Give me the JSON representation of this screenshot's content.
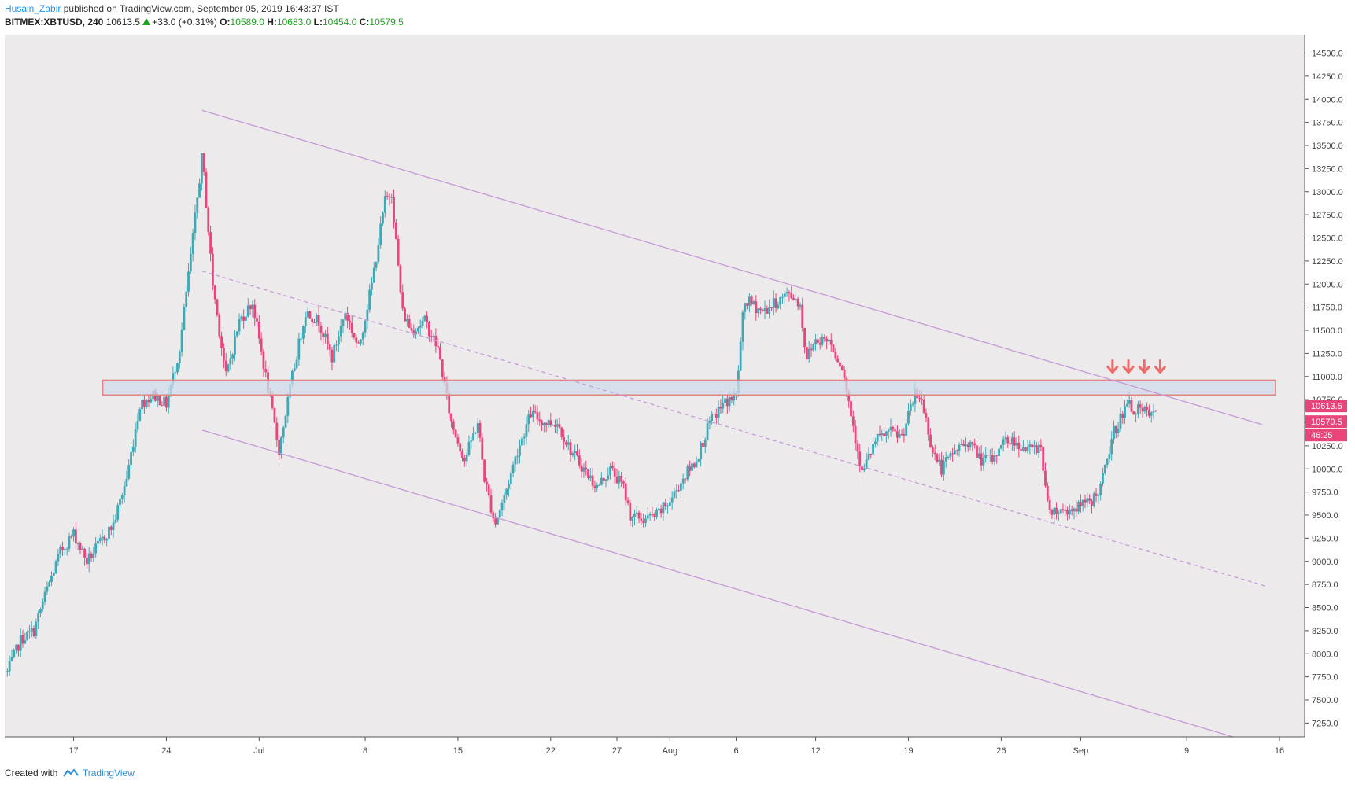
{
  "header": {
    "author": "Husain_Zabir",
    "published_text": "published on TradingView.com, September 05, 2019 16:43:37 IST",
    "symbol": "BITMEX:XBTUSD, 240",
    "last": "10613.5",
    "change": "+33.0 (+0.31%)",
    "open_label": "O:",
    "open": "10589.0",
    "high_label": "H:",
    "high": "10683.0",
    "low_label": "L:",
    "low": "10454.0",
    "close_label": "C:",
    "close": "10579.5"
  },
  "footer": {
    "created_with": "Created with",
    "brand": "TradingView"
  },
  "colors": {
    "bull": "#3fa8b4",
    "bear": "#e8457a",
    "background": "#edeaec",
    "channel": "#c59ad6",
    "zone_fill": "#cfdcea",
    "zone_border": "#e08484",
    "arrow": "#ef6a6a",
    "badge": "#e8457a"
  },
  "chart_data": {
    "type": "candlestick",
    "symbol": "BITMEX:XBTUSD",
    "interval": "240",
    "ylim": [
      7100,
      14700
    ],
    "y_ticks": [
      7250,
      7500,
      7750,
      8000,
      8250,
      8500,
      8750,
      9000,
      9250,
      9500,
      9750,
      10000,
      10250,
      10500,
      10750,
      11000,
      11250,
      11500,
      11750,
      12000,
      12250,
      12500,
      12750,
      13000,
      13250,
      13500,
      13750,
      14000,
      14250,
      14500
    ],
    "x_ticks": [
      {
        "label": "17",
        "day": 17
      },
      {
        "label": "24",
        "day": 24
      },
      {
        "label": "Jul",
        "day": 31
      },
      {
        "label": "8",
        "day": 39
      },
      {
        "label": "15",
        "day": 46
      },
      {
        "label": "22",
        "day": 53
      },
      {
        "label": "27",
        "day": 58
      },
      {
        "label": "Aug",
        "day": 62
      },
      {
        "label": "6",
        "day": 67
      },
      {
        "label": "12",
        "day": 73
      },
      {
        "label": "19",
        "day": 80
      },
      {
        "label": "26",
        "day": 87
      },
      {
        "label": "Sep",
        "day": 93
      },
      {
        "label": "9",
        "day": 101
      },
      {
        "label": "16",
        "day": 108
      }
    ],
    "x_range_days": [
      11.8,
      109.9
    ],
    "price_path": [
      [
        12.0,
        7800
      ],
      [
        13.0,
        8150
      ],
      [
        14.0,
        8250
      ],
      [
        15.0,
        8700
      ],
      [
        16.0,
        9100
      ],
      [
        17.0,
        9300
      ],
      [
        18.0,
        9000
      ],
      [
        19.0,
        9200
      ],
      [
        20.0,
        9400
      ],
      [
        21.0,
        9900
      ],
      [
        22.0,
        10700
      ],
      [
        23.0,
        10800
      ],
      [
        24.0,
        10700
      ],
      [
        25.0,
        11300
      ],
      [
        26.0,
        12500
      ],
      [
        26.7,
        13400
      ],
      [
        27.5,
        12000
      ],
      [
        28.5,
        11000
      ],
      [
        29.5,
        11600
      ],
      [
        30.5,
        11800
      ],
      [
        31.5,
        11000
      ],
      [
        32.5,
        10200
      ],
      [
        33.5,
        11000
      ],
      [
        34.5,
        11700
      ],
      [
        35.5,
        11600
      ],
      [
        36.5,
        11200
      ],
      [
        37.5,
        11700
      ],
      [
        38.5,
        11300
      ],
      [
        39.5,
        12000
      ],
      [
        40.5,
        12900
      ],
      [
        41.0,
        13000
      ],
      [
        41.8,
        11700
      ],
      [
        42.5,
        11500
      ],
      [
        43.5,
        11600
      ],
      [
        44.5,
        11300
      ],
      [
        45.5,
        10500
      ],
      [
        46.5,
        10100
      ],
      [
        47.5,
        10500
      ],
      [
        48.0,
        9900
      ],
      [
        48.8,
        9400
      ],
      [
        49.5,
        9700
      ],
      [
        50.5,
        10200
      ],
      [
        51.5,
        10600
      ],
      [
        52.5,
        10500
      ],
      [
        53.5,
        10500
      ],
      [
        54.5,
        10200
      ],
      [
        55.5,
        10000
      ],
      [
        56.5,
        9800
      ],
      [
        57.5,
        10000
      ],
      [
        58.5,
        9800
      ],
      [
        59.0,
        9500
      ],
      [
        60.0,
        9450
      ],
      [
        61.0,
        9500
      ],
      [
        62.0,
        9650
      ],
      [
        63.0,
        9900
      ],
      [
        64.0,
        10100
      ],
      [
        65.0,
        10500
      ],
      [
        66.0,
        10700
      ],
      [
        67.0,
        10800
      ],
      [
        67.6,
        11800
      ],
      [
        68.0,
        11800
      ],
      [
        69.0,
        11700
      ],
      [
        70.0,
        11800
      ],
      [
        71.0,
        11900
      ],
      [
        71.8,
        11800
      ],
      [
        72.3,
        11200
      ],
      [
        73.0,
        11400
      ],
      [
        74.0,
        11400
      ],
      [
        75.0,
        11100
      ],
      [
        75.8,
        10500
      ],
      [
        76.5,
        9950
      ],
      [
        77.5,
        10300
      ],
      [
        78.5,
        10400
      ],
      [
        79.5,
        10350
      ],
      [
        80.5,
        10800
      ],
      [
        81.0,
        10750
      ],
      [
        81.8,
        10200
      ],
      [
        82.5,
        10000
      ],
      [
        83.5,
        10200
      ],
      [
        84.5,
        10300
      ],
      [
        85.5,
        10100
      ],
      [
        86.5,
        10100
      ],
      [
        87.0,
        10300
      ],
      [
        88.0,
        10300
      ],
      [
        89.0,
        10200
      ],
      [
        90.0,
        10250
      ],
      [
        90.5,
        9600
      ],
      [
        91.0,
        9550
      ],
      [
        92.0,
        9550
      ],
      [
        93.0,
        9600
      ],
      [
        93.8,
        9650
      ],
      [
        94.5,
        9800
      ],
      [
        95.5,
        10400
      ],
      [
        96.5,
        10700
      ],
      [
        97.0,
        10650
      ],
      [
        98.0,
        10600
      ],
      [
        98.7,
        10579.5
      ]
    ],
    "last_price": "10613.5",
    "close_price": "10579.5",
    "countdown": "46:25",
    "resistance_zone": {
      "low": 10800,
      "high": 10960,
      "day_start": 19.2,
      "day_end": 107.7
    },
    "channel_upper": [
      [
        26.7,
        13880
      ],
      [
        106.7,
        10480
      ]
    ],
    "channel_mid": [
      [
        26.7,
        12140
      ],
      [
        107.0,
        8730
      ]
    ],
    "channel_lower": [
      [
        26.7,
        10420
      ],
      [
        104.5,
        7100
      ]
    ],
    "arrows": {
      "days": [
        95.4,
        96.6,
        97.8,
        99.0
      ],
      "price": 11070
    }
  }
}
